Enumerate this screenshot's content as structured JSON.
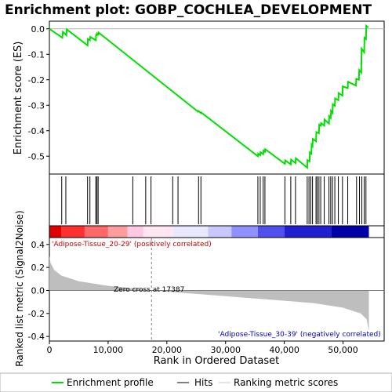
{
  "chart_data": {
    "type": "line",
    "title": "Enrichment plot: GOBP_COCHLEA_DEVELOPMENT",
    "xlabel": "Rank in Ordered Dataset",
    "xlim": [
      0,
      57000
    ],
    "x_ticks": [
      0,
      10000,
      20000,
      30000,
      40000,
      50000
    ],
    "x_tick_labels": [
      "0",
      "10,000",
      "20,000",
      "30,000",
      "40,000",
      "50,000"
    ],
    "es_panel": {
      "ylabel": "Enrichment score (ES)",
      "ylim": [
        -0.57,
        0.03
      ],
      "y_ticks": [
        0.0,
        -0.1,
        -0.2,
        -0.3,
        -0.4,
        -0.5
      ],
      "y_tick_labels": [
        "0.0",
        "-0.1",
        "-0.2",
        "-0.3",
        "-0.4",
        "-0.5"
      ],
      "color": "#00e000",
      "x": [
        0,
        2200,
        2300,
        2900,
        2950,
        6500,
        6550,
        6900,
        6950,
        7900,
        7950,
        8100,
        8150,
        8350,
        8400,
        25300,
        25350,
        25800,
        25850,
        35500,
        35550,
        35900,
        35950,
        36400,
        36450,
        36700,
        36750,
        40100,
        40150,
        41100,
        41150,
        41900,
        41950,
        43900,
        43950,
        44300,
        44350,
        44600,
        44650,
        44800,
        44850,
        45400,
        45450,
        45900,
        45950,
        46200,
        46250,
        46800,
        46850,
        47600,
        47650,
        47900,
        47950,
        48200,
        48250,
        48600,
        48650,
        49200,
        49250,
        49900,
        49950,
        50800,
        50850,
        52200,
        52250,
        52700,
        52750,
        53100,
        53150,
        53600,
        53650,
        53900,
        53950,
        54300
      ],
      "y": [
        0.0,
        -0.035,
        -0.012,
        -0.025,
        -0.002,
        -0.065,
        -0.04,
        -0.045,
        -0.032,
        -0.045,
        -0.023,
        -0.025,
        -0.018,
        -0.022,
        -0.015,
        -0.325,
        -0.322,
        -0.331,
        -0.328,
        -0.5,
        -0.49,
        -0.496,
        -0.484,
        -0.492,
        -0.478,
        -0.483,
        -0.472,
        -0.53,
        -0.516,
        -0.532,
        -0.513,
        -0.527,
        -0.508,
        -0.545,
        -0.515,
        -0.52,
        -0.485,
        -0.49,
        -0.455,
        -0.46,
        -0.432,
        -0.442,
        -0.405,
        -0.41,
        -0.376,
        -0.38,
        -0.37,
        -0.38,
        -0.356,
        -0.372,
        -0.343,
        -0.35,
        -0.322,
        -0.33,
        -0.296,
        -0.302,
        -0.273,
        -0.28,
        -0.252,
        -0.262,
        -0.226,
        -0.233,
        -0.208,
        -0.223,
        -0.196,
        -0.2,
        -0.162,
        -0.172,
        -0.078,
        -0.092,
        -0.035,
        -0.04,
        0.012,
        0.005
      ]
    },
    "hits": [
      2100,
      2800,
      6500,
      6900,
      7900,
      8100,
      8300,
      14200,
      16400,
      17300,
      21000,
      21900,
      25400,
      25800,
      35500,
      35900,
      36400,
      36700,
      40100,
      41100,
      41900,
      43900,
      44200,
      44500,
      44800,
      45400,
      45600,
      45900,
      46200,
      46800,
      47600,
      47900,
      48200,
      48600,
      49200,
      49900,
      50800,
      52300,
      52800,
      53200,
      53600,
      53900
    ],
    "heatmap": {
      "colors": [
        "#e00000",
        "#ff3030",
        "#ff6868",
        "#ff9c9c",
        "#ffc8e4",
        "#ffe6f0",
        "#e8e8ff",
        "#c8c8ff",
        "#9090ff",
        "#5050ee",
        "#2020d0",
        "#0000a8"
      ],
      "stops": [
        0,
        2000,
        6000,
        10000,
        13300,
        16000,
        21000,
        27000,
        31000,
        35500,
        40000,
        48000,
        54400
      ]
    },
    "metric_panel": {
      "ylabel": "Ranked list metric (Signal2Noise)",
      "ylim": [
        -0.44,
        0.46
      ],
      "y_ticks": [
        0.4,
        0.2,
        0.0,
        -0.2,
        -0.4
      ],
      "y_tick_labels": [
        "0.4",
        "0.2",
        "0.0",
        "-0.2",
        "-0.4"
      ],
      "x": [
        0,
        200,
        800,
        2000,
        5000,
        10000,
        15000,
        17387,
        25000,
        35000,
        45000,
        50000,
        53000,
        54000,
        54400
      ],
      "y": [
        0.3,
        0.24,
        0.18,
        0.13,
        0.08,
        0.04,
        0.015,
        0.0,
        -0.03,
        -0.07,
        -0.11,
        -0.15,
        -0.2,
        -0.25,
        -0.35
      ],
      "fill_color": "#bebebe"
    },
    "annotations": {
      "pos_label": "'Adipose-Tissue_20-29' (positively correlated)",
      "neg_label": "'Adipose-Tissue_30-39' (negatively correlated)",
      "zero_cross": "Zero cross at 17387",
      "pos_color": "#d00000",
      "neg_color": "#0000cc"
    },
    "legend": {
      "items": [
        "Enrichment profile",
        "Hits",
        "Ranking metric scores"
      ],
      "colors": [
        "#00e000",
        "#000000",
        "#c8c8c8"
      ]
    }
  }
}
